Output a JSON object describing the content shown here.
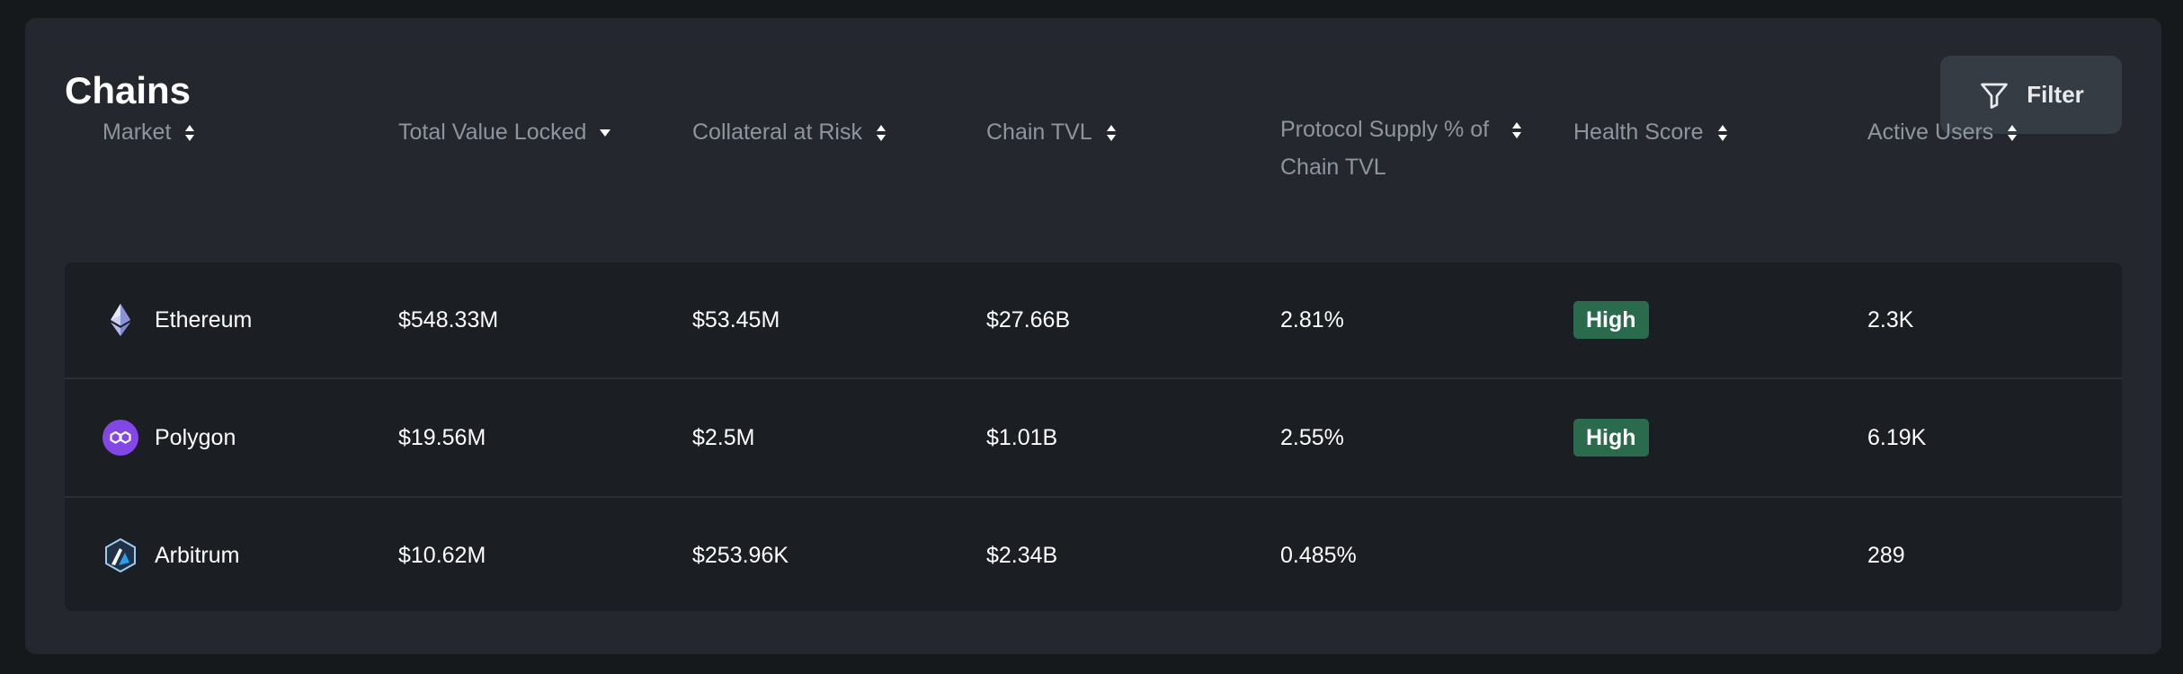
{
  "title": "Chains",
  "filter": {
    "label": "Filter",
    "icon": "filter-icon"
  },
  "columns": [
    {
      "key": "market",
      "label": "Market",
      "sort": "both"
    },
    {
      "key": "tvl",
      "label": "Total Value Locked",
      "sort": "desc"
    },
    {
      "key": "collateral",
      "label": "Collateral at Risk",
      "sort": "both"
    },
    {
      "key": "chain_tvl",
      "label": "Chain TVL",
      "sort": "both"
    },
    {
      "key": "supply_pct",
      "label": "Protocol Supply % of Chain TVL",
      "sort": "both"
    },
    {
      "key": "health",
      "label": "Health Score",
      "sort": "both"
    },
    {
      "key": "users",
      "label": "Active Users",
      "sort": "both"
    }
  ],
  "rows": [
    {
      "market": "Ethereum",
      "icon": "ethereum-icon",
      "tvl": "$548.33M",
      "collateral": "$53.45M",
      "chain_tvl": "$27.66B",
      "supply_pct": "2.81%",
      "health": "High",
      "users": "2.3K"
    },
    {
      "market": "Polygon",
      "icon": "polygon-icon",
      "tvl": "$19.56M",
      "collateral": "$2.5M",
      "chain_tvl": "$1.01B",
      "supply_pct": "2.55%",
      "health": "High",
      "users": "6.19K"
    },
    {
      "market": "Arbitrum",
      "icon": "arbitrum-icon",
      "tvl": "$10.62M",
      "collateral": "$253.96K",
      "chain_tvl": "$2.34B",
      "supply_pct": "0.485%",
      "health": "",
      "users": "289"
    }
  ],
  "colors": {
    "background": "#16191c",
    "card": "#24282e",
    "table_body": "#1b1e22",
    "header_text": "#8e959e",
    "badge_high": "#2a6b4e",
    "polygon": "#8247e5",
    "arbitrum": "#28a0f0"
  }
}
